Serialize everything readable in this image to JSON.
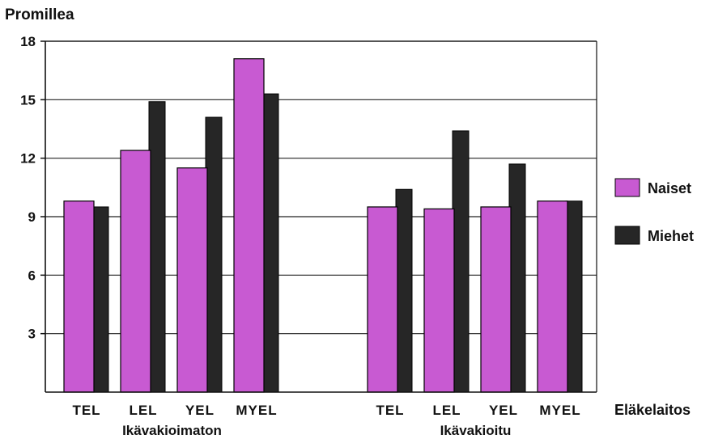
{
  "chart_data": {
    "type": "bar",
    "ylabel": "Promillea",
    "xlabel": "Eläkelaitos",
    "ylim": [
      0,
      18
    ],
    "yticks": [
      3,
      6,
      9,
      12,
      15,
      18
    ],
    "grid": true,
    "legend_position": "right",
    "groups": [
      {
        "label": "Ikävakioimaton",
        "categories": [
          "TEL",
          "LEL",
          "YEL",
          "MYEL"
        ],
        "series": [
          {
            "name": "Naiset",
            "values": [
              9.8,
              12.4,
              11.5,
              17.1
            ]
          },
          {
            "name": "Miehet",
            "values": [
              9.5,
              14.9,
              14.1,
              15.3
            ]
          }
        ]
      },
      {
        "label": "Ikävakioitu",
        "categories": [
          "TEL",
          "LEL",
          "YEL",
          "MYEL"
        ],
        "series": [
          {
            "name": "Naiset",
            "values": [
              9.5,
              9.4,
              9.5,
              9.8
            ]
          },
          {
            "name": "Miehet",
            "values": [
              10.4,
              13.4,
              11.7,
              9.8
            ]
          }
        ]
      }
    ],
    "colors": {
      "Naiset": "#c85ad2",
      "Miehet": "#262626"
    }
  }
}
